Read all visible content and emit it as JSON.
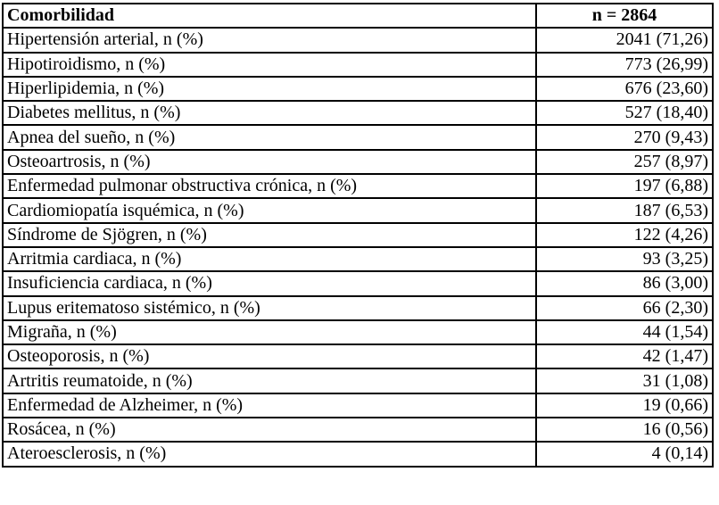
{
  "table": {
    "headers": [
      "Comorbilidad",
      "n = 2864"
    ],
    "rows": [
      [
        "Hipertensión arterial, n (%)",
        "2041 (71,26)"
      ],
      [
        "Hipotiroidismo, n (%)",
        "773 (26,99)"
      ],
      [
        "Hiperlipidemia, n (%)",
        "676 (23,60)"
      ],
      [
        "Diabetes mellitus, n (%)",
        "527 (18,40)"
      ],
      [
        "Apnea del sueño, n (%)",
        "270 (9,43)"
      ],
      [
        "Osteoartrosis, n (%)",
        "257 (8,97)"
      ],
      [
        "Enfermedad pulmonar obstructiva crónica, n (%)",
        "197 (6,88)"
      ],
      [
        "Cardiomiopatía isquémica, n (%)",
        "187 (6,53)"
      ],
      [
        "Síndrome de Sjögren, n (%)",
        "122 (4,26)"
      ],
      [
        "Arritmia cardiaca, n (%)",
        "93 (3,25)"
      ],
      [
        "Insuficiencia cardiaca, n (%)",
        "86 (3,00)"
      ],
      [
        "Lupus eritematoso sistémico, n (%)",
        "66 (2,30)"
      ],
      [
        "Migraña, n (%)",
        "44 (1,54)"
      ],
      [
        "Osteoporosis, n (%)",
        "42 (1,47)"
      ],
      [
        "Artritis reumatoide, n (%)",
        "31 (1,08)"
      ],
      [
        "Enfermedad de Alzheimer, n (%)",
        "19 (0,66)"
      ],
      [
        "Rosácea, n (%)",
        "16 (0,56)"
      ],
      [
        "Ateroesclerosis, n (%)",
        "4 (0,14)"
      ]
    ]
  }
}
